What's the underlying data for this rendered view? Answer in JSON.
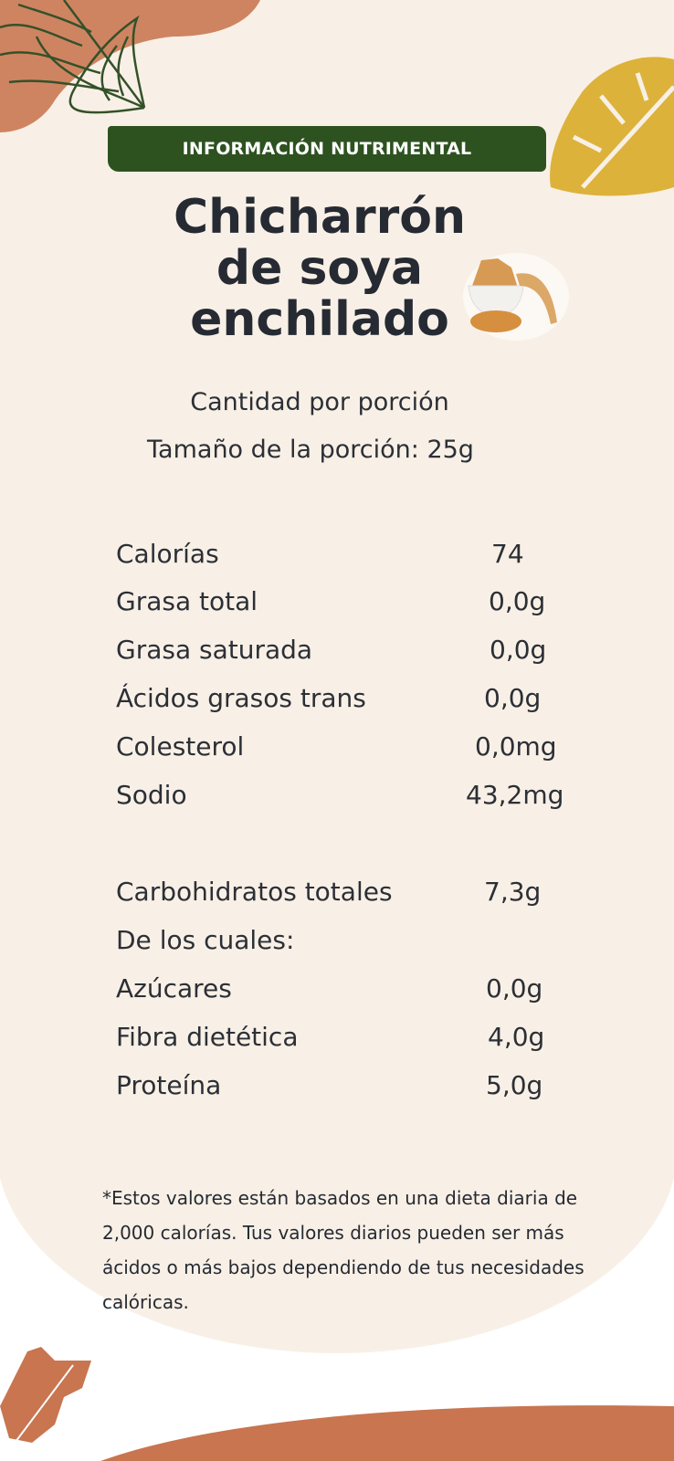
{
  "banner": "INFORMACIÓN NUTRIMENTAL",
  "title": [
    "Chicharrón",
    "de soya",
    "enchilado"
  ],
  "serving": {
    "label": "Cantidad por porción",
    "size": "Tamaño de la porción: 25g"
  },
  "nutrients": [
    {
      "name": "Calorías",
      "value": "74"
    },
    {
      "name": "Grasa total",
      "value": "0,0g"
    },
    {
      "name": "Grasa saturada",
      "value": "0,0g"
    },
    {
      "name": "Ácidos grasos trans",
      "value": "0,0g"
    },
    {
      "name": "Colesterol",
      "value": "0,0mg"
    },
    {
      "name": "Sodio",
      "value": "43,2mg"
    },
    {
      "name": "Carbohidratos totales",
      "value": "7,3g"
    },
    {
      "name": "De los cuales:",
      "value": ""
    },
    {
      "name": "Azúcares",
      "value": "0,0g"
    },
    {
      "name": "Fibra dietética",
      "value": "4,0g"
    },
    {
      "name": "Proteína",
      "value": "5,0g"
    }
  ],
  "note": "*Estos valores están basados en una dieta diaria de 2,000 calorías. Tus valores diarios pueden ser más ácidos o más bajos dependiendo de tus necesidades calóricas.",
  "colors": {
    "cream": "#f8f0e6",
    "green": "#2d5220",
    "terracotta": "#c87550",
    "mustard": "#dcb23a",
    "text": "#262a33"
  }
}
